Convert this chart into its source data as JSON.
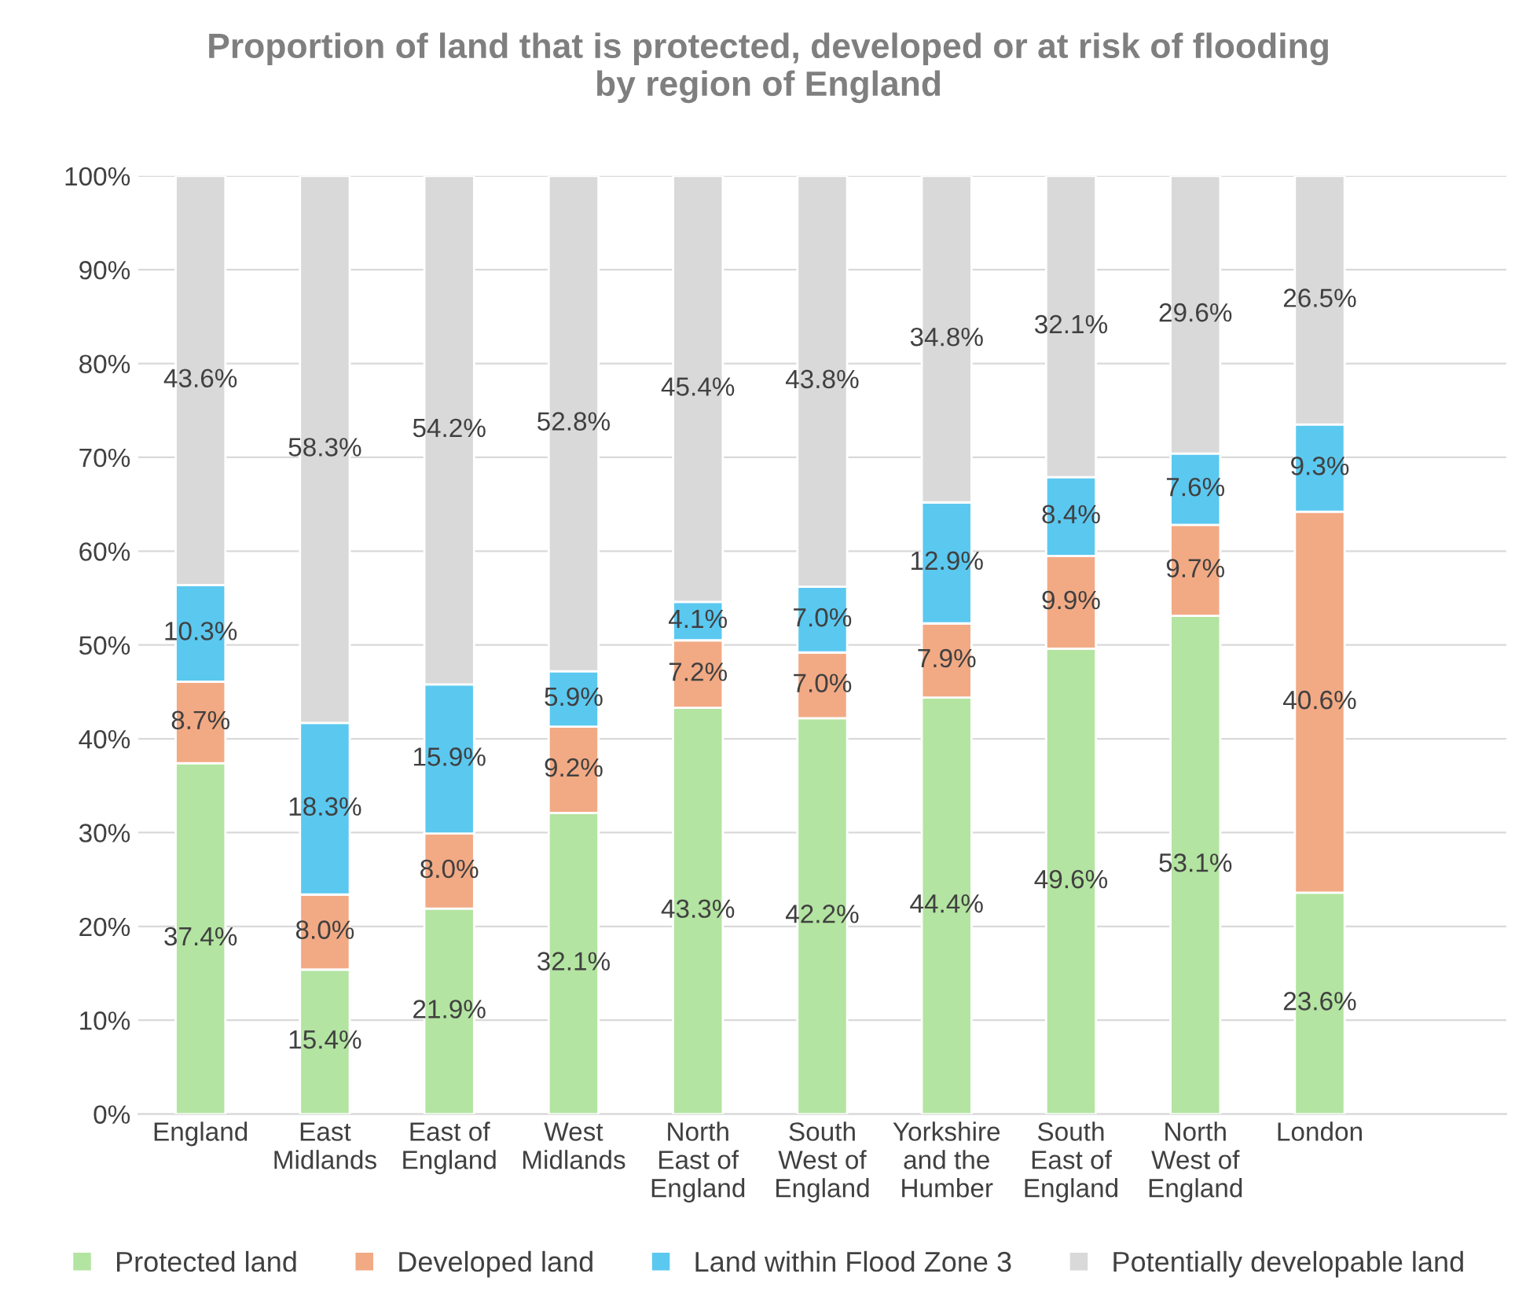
{
  "chart_data": {
    "type": "bar",
    "stacked": true,
    "title": "Proportion of land that is protected, developed or at risk of flooding\nby region of England",
    "categories": [
      "England",
      "East\nMidlands",
      "East of\nEngland",
      "West\nMidlands",
      "North\nEast of\nEngland",
      "South\nWest of\nEngland",
      "Yorkshire\nand the\nHumber",
      "South\nEast of\nEngland",
      "North\nWest of\nEngland",
      "London"
    ],
    "series": [
      {
        "name": "Protected land",
        "color": "#b3e4a1",
        "values": [
          37.4,
          15.4,
          21.9,
          32.1,
          43.3,
          42.2,
          44.4,
          49.6,
          53.1,
          23.6
        ],
        "value_labels": [
          "37.4%",
          "15.4%",
          "21.9%",
          "32.1%",
          "43.3%",
          "42.2%",
          "44.4%",
          "49.6%",
          "53.1%",
          "23.6%"
        ]
      },
      {
        "name": "Developed land",
        "color": "#f2aa84",
        "values": [
          8.7,
          8.0,
          8.0,
          9.2,
          7.2,
          7.0,
          7.9,
          9.9,
          9.7,
          40.6
        ],
        "value_labels": [
          "8.7%",
          "8.0%",
          "8.0%",
          "9.2%",
          "7.2%",
          "7.0%",
          "7.9%",
          "9.9%",
          "9.7%",
          "40.6%"
        ]
      },
      {
        "name": "Land within Flood Zone 3",
        "color": "#5bc8f0",
        "values": [
          10.3,
          18.3,
          15.9,
          5.9,
          4.1,
          7.0,
          12.9,
          8.4,
          7.6,
          9.3
        ],
        "value_labels": [
          "10.3%",
          "18.3%",
          "15.9%",
          "5.9%",
          "4.1%",
          "7.0%",
          "12.9%",
          "8.4%",
          "7.6%",
          "9.3%"
        ]
      },
      {
        "name": "Potentially developable land",
        "color": "#d9d9d9",
        "values": [
          43.6,
          58.3,
          54.2,
          52.8,
          45.4,
          43.8,
          34.8,
          32.1,
          29.6,
          26.5
        ],
        "value_labels": [
          "43.6%",
          "58.3%",
          "54.2%",
          "52.8%",
          "45.4%",
          "43.8%",
          "34.8%",
          "32.1%",
          "29.6%",
          "26.5%"
        ]
      }
    ],
    "ylim": [
      0,
      100
    ],
    "yticks": [
      {
        "value": 0,
        "label": "0%"
      },
      {
        "value": 10,
        "label": "10%"
      },
      {
        "value": 20,
        "label": "20%"
      },
      {
        "value": 30,
        "label": "30%"
      },
      {
        "value": 40,
        "label": "40%"
      },
      {
        "value": 50,
        "label": "50%"
      },
      {
        "value": 60,
        "label": "60%"
      },
      {
        "value": 70,
        "label": "70%"
      },
      {
        "value": 80,
        "label": "80%"
      },
      {
        "value": 90,
        "label": "90%"
      },
      {
        "value": 100,
        "label": "100%"
      }
    ],
    "grid": "y",
    "legend": "bottom"
  }
}
